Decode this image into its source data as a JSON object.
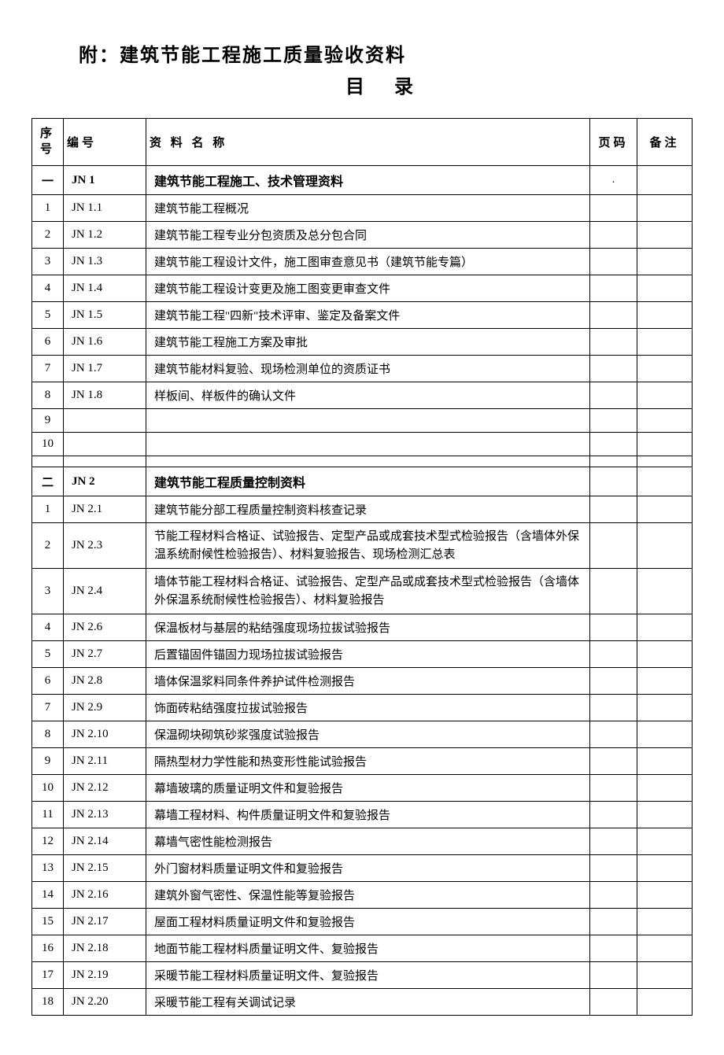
{
  "title": {
    "main": "附：建筑节能工程施工质量验收资料",
    "sub": "目 录"
  },
  "headers": {
    "seq": "序号",
    "code": "编号",
    "name": "资 料 名 称",
    "page": "页码",
    "note": "备注"
  },
  "sections": [
    {
      "seq": "一",
      "code": "JN 1",
      "name": "建筑节能工程施工、技术管理资料",
      "page_mark": ".",
      "rows": [
        {
          "seq": "1",
          "code": "JN 1.1",
          "name": "建筑节能工程概况"
        },
        {
          "seq": "2",
          "code": "JN 1.2",
          "name": "建筑节能工程专业分包资质及总分包合同"
        },
        {
          "seq": "3",
          "code": "JN 1.3",
          "name": "建筑节能工程设计文件，施工图审查意见书（建筑节能专篇）"
        },
        {
          "seq": "4",
          "code": "JN 1.4",
          "name": "建筑节能工程设计变更及施工图变更审查文件"
        },
        {
          "seq": "5",
          "code": "JN 1.5",
          "name": "建筑节能工程\"四新\"技术评审、鉴定及备案文件"
        },
        {
          "seq": "6",
          "code": "JN 1.6",
          "name": "建筑节能工程施工方案及审批"
        },
        {
          "seq": "7",
          "code": "JN 1.7",
          "name": "建筑节能材料复验、现场检测单位的资质证书"
        },
        {
          "seq": "8",
          "code": "JN 1.8",
          "name": "样板间、样板件的确认文件"
        },
        {
          "seq": "9",
          "code": "",
          "name": ""
        },
        {
          "seq": "10",
          "code": "",
          "name": ""
        }
      ]
    },
    {
      "seq": "二",
      "code": "JN 2",
      "name": "建筑节能工程质量控制资料",
      "page_mark": "",
      "rows": [
        {
          "seq": "1",
          "code": "JN 2.1",
          "name": "建筑节能分部工程质量控制资料核查记录"
        },
        {
          "seq": "2",
          "code": "JN 2.3",
          "name": "节能工程材料合格证、试验报告、定型产品或成套技术型式检验报告（含墙体外保温系统耐候性检验报告）、材料复验报告、现场检测汇总表",
          "multiline": true
        },
        {
          "seq": "3",
          "code": "JN 2.4",
          "name": "墙体节能工程材料合格证、试验报告、定型产品或成套技术型式检验报告（含墙体外保温系统耐候性检验报告）、材料复验报告",
          "multiline": true
        },
        {
          "seq": "4",
          "code": "JN 2.6",
          "name": "保温板材与基层的粘结强度现场拉拔试验报告"
        },
        {
          "seq": "5",
          "code": "JN 2.7",
          "name": "后置锚固件锚固力现场拉拔试验报告"
        },
        {
          "seq": "6",
          "code": "JN 2.8",
          "name": "墙体保温浆料同条件养护试件检测报告"
        },
        {
          "seq": "7",
          "code": "JN 2.9",
          "name": "饰面砖粘结强度拉拔试验报告"
        },
        {
          "seq": "8",
          "code": "JN 2.10",
          "name": "保温砌块砌筑砂浆强度试验报告"
        },
        {
          "seq": "9",
          "code": "JN 2.11",
          "name": "隔热型材力学性能和热变形性能试验报告"
        },
        {
          "seq": "10",
          "code": "JN 2.12",
          "name": "幕墙玻璃的质量证明文件和复验报告"
        },
        {
          "seq": "11",
          "code": "JN 2.13",
          "name": "幕墙工程材料、构件质量证明文件和复验报告"
        },
        {
          "seq": "12",
          "code": "JN 2.14",
          "name": "幕墙气密性能检测报告"
        },
        {
          "seq": "13",
          "code": "JN 2.15",
          "name": "外门窗材料质量证明文件和复验报告"
        },
        {
          "seq": "14",
          "code": "JN 2.16",
          "name": "建筑外窗气密性、保温性能等复验报告"
        },
        {
          "seq": "15",
          "code": "JN 2.17",
          "name": "屋面工程材料质量证明文件和复验报告"
        },
        {
          "seq": "16",
          "code": "JN 2.18",
          "name": "地面节能工程材料质量证明文件、复验报告"
        },
        {
          "seq": "17",
          "code": "JN 2.19",
          "name": "采暖节能工程材料质量证明文件、复验报告"
        },
        {
          "seq": "18",
          "code": "JN 2.20",
          "name": "采暖节能工程有关调试记录"
        }
      ]
    }
  ],
  "styling": {
    "background_color": "#ffffff",
    "text_color": "#000000",
    "border_color": "#000000",
    "title_fontsize": 24,
    "header_fontsize": 15,
    "body_fontsize": 15,
    "font_family": "SimSun"
  }
}
